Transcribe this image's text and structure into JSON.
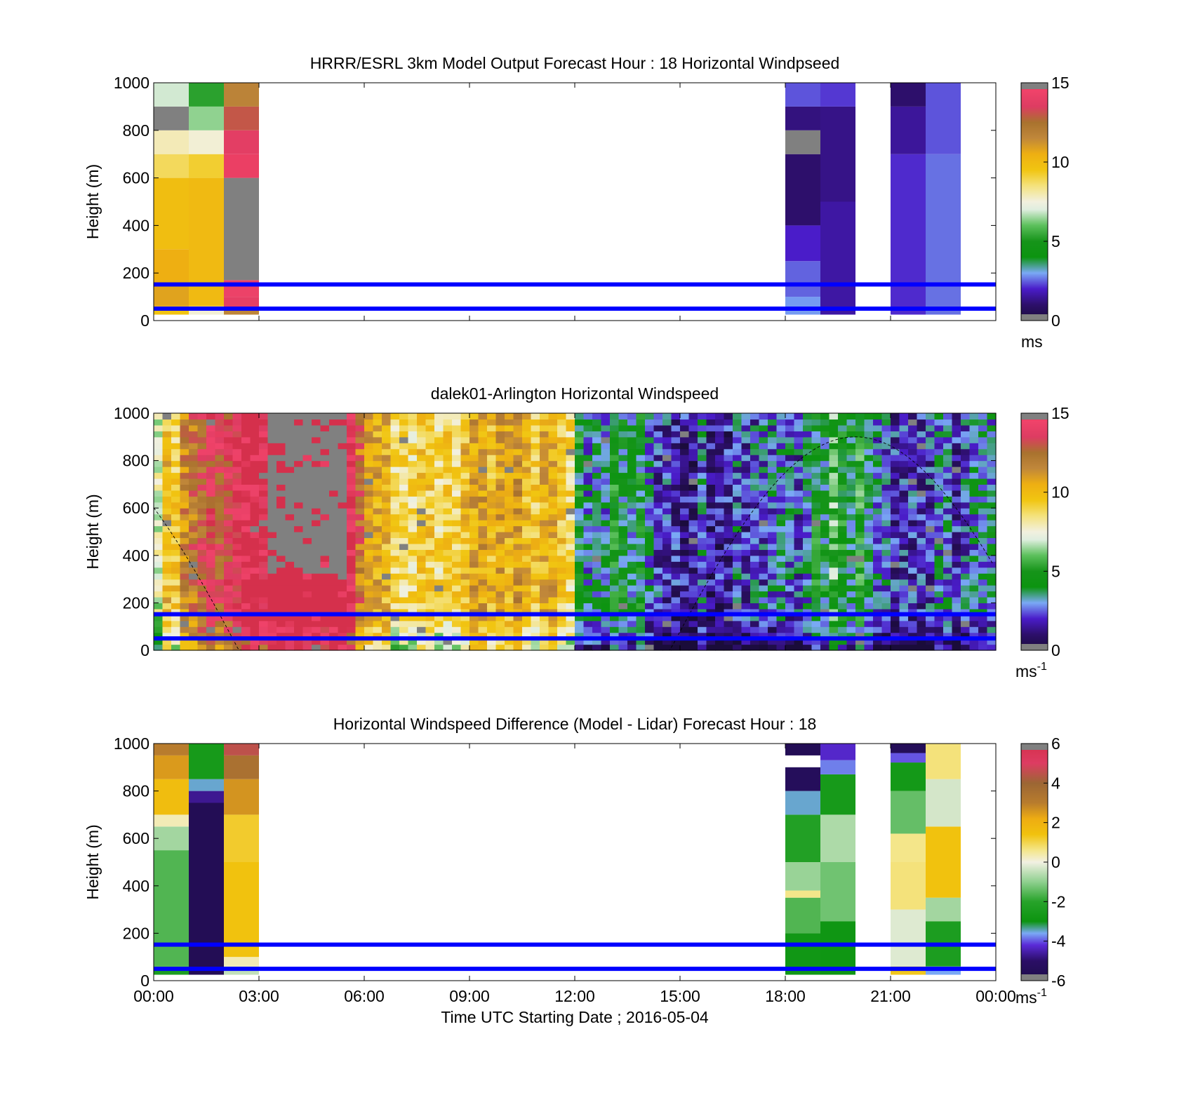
{
  "colors": {
    "frame": "#000000",
    "band_lines": "#0000ff",
    "missing_gray": "#808080"
  },
  "chart_data": [
    {
      "type": "heatmap",
      "title": "HRRR/ESRL 3km Model Output   Forecast Hour : 18 Horizontal Windpseed",
      "ylabel": "Height (m)",
      "xlim_hours": [
        0,
        24
      ],
      "ylim": [
        0,
        1000
      ],
      "yticks": [
        "0",
        "200",
        "400",
        "600",
        "800",
        "1000"
      ],
      "colorbar": {
        "min": 0,
        "max": 15,
        "ticks": [
          "0",
          "5",
          "10",
          "15"
        ],
        "unit": "ms",
        "unit_sup": "",
        "palette": "speed"
      },
      "band_lines_m": [
        50,
        152
      ],
      "columns": [
        {
          "t0": 0,
          "t1": 1,
          "cells": [
            {
              "z0": 25,
              "z1": 60,
              "v": 9.6
            },
            {
              "z0": 60,
              "z1": 150,
              "v": 10.8
            },
            {
              "z0": 150,
              "z1": 300,
              "v": 10.5
            },
            {
              "z0": 300,
              "z1": 600,
              "v": 9.8
            },
            {
              "z0": 600,
              "z1": 700,
              "v": 8.8
            },
            {
              "z0": 700,
              "z1": 800,
              "v": 7.9
            },
            {
              "z0": 800,
              "z1": 900,
              "v": null
            },
            {
              "z0": 900,
              "z1": 1000,
              "v": 6.9
            }
          ]
        },
        {
          "t0": 1,
          "t1": 2,
          "cells": [
            {
              "z0": 25,
              "z1": 60,
              "v": 7.6
            },
            {
              "z0": 60,
              "z1": 600,
              "v": 10.0
            },
            {
              "z0": 600,
              "z1": 700,
              "v": 9.2
            },
            {
              "z0": 700,
              "z1": 800,
              "v": 7.6
            },
            {
              "z0": 800,
              "z1": 900,
              "v": 6.4
            },
            {
              "z0": 900,
              "z1": 1000,
              "v": 5.3
            }
          ]
        },
        {
          "t0": 2,
          "t1": 3,
          "cells": [
            {
              "z0": 25,
              "z1": 45,
              "v": 11.6
            },
            {
              "z0": 45,
              "z1": 100,
              "v": 13.9
            },
            {
              "z0": 100,
              "z1": 170,
              "v": 14.3
            },
            {
              "z0": 170,
              "z1": 600,
              "v": null
            },
            {
              "z0": 600,
              "z1": 700,
              "v": 14.6
            },
            {
              "z0": 700,
              "z1": 800,
              "v": 13.8
            },
            {
              "z0": 800,
              "z1": 900,
              "v": 13.0
            },
            {
              "z0": 900,
              "z1": 1000,
              "v": 11.7
            }
          ]
        },
        {
          "t0": 18,
          "t1": 19,
          "cells": [
            {
              "z0": 25,
              "z1": 100,
              "v": 2.9
            },
            {
              "z0": 100,
              "z1": 250,
              "v": 2.5
            },
            {
              "z0": 250,
              "z1": 400,
              "v": 2.0
            },
            {
              "z0": 400,
              "z1": 700,
              "v": 1.0
            },
            {
              "z0": 700,
              "z1": 800,
              "v": null
            },
            {
              "z0": 800,
              "z1": 900,
              "v": 1.2
            },
            {
              "z0": 900,
              "z1": 1000,
              "v": 2.4
            }
          ]
        },
        {
          "t0": 19,
          "t1": 20,
          "cells": [
            {
              "z0": 25,
              "z1": 500,
              "v": 1.6
            },
            {
              "z0": 500,
              "z1": 900,
              "v": 1.3
            },
            {
              "z0": 900,
              "z1": 1000,
              "v": 2.2
            }
          ]
        },
        {
          "t0": 21,
          "t1": 22,
          "cells": [
            {
              "z0": 25,
              "z1": 700,
              "v": 2.1
            },
            {
              "z0": 700,
              "z1": 900,
              "v": 1.5
            },
            {
              "z0": 900,
              "z1": 1000,
              "v": 1.0
            }
          ]
        },
        {
          "t0": 22,
          "t1": 23,
          "cells": [
            {
              "z0": 25,
              "z1": 700,
              "v": 2.6
            },
            {
              "z0": 700,
              "z1": 1000,
              "v": 2.4
            }
          ]
        }
      ]
    },
    {
      "type": "heatmap",
      "title": "dalek01-Arlington  Horizontal Windspeed",
      "ylabel": "Height (m)",
      "xlim_hours": [
        0,
        24
      ],
      "ylim": [
        0,
        1000
      ],
      "yticks": [
        "0",
        "200",
        "400",
        "600",
        "800",
        "1000"
      ],
      "colorbar": {
        "min": 0,
        "max": 15,
        "ticks": [
          "0",
          "5",
          "10",
          "15"
        ],
        "unit": "ms",
        "unit_sup": "-1",
        "palette": "speed"
      },
      "band_lines_m": [
        50,
        152
      ],
      "time_step_hours": 0.25,
      "height_step_m": 25,
      "time_profile": [
        {
          "t": 0.0,
          "v": 7.5
        },
        {
          "t": 0.5,
          "v": 9.5
        },
        {
          "t": 1.0,
          "v": 12.0
        },
        {
          "t": 1.5,
          "v": 13.5
        },
        {
          "t": 2.5,
          "v": 14.5
        },
        {
          "t": 3.5,
          "v": 16.0
        },
        {
          "t": 5.5,
          "v": 16.0
        },
        {
          "t": 5.9,
          "v": 12.0
        },
        {
          "t": 6.5,
          "v": 10.5
        },
        {
          "t": 7.5,
          "v": 8.5
        },
        {
          "t": 8.5,
          "v": 9.5
        },
        {
          "t": 10.0,
          "v": 10.2
        },
        {
          "t": 11.8,
          "v": 9.8
        },
        {
          "t": 12.2,
          "v": 4.0
        },
        {
          "t": 13.5,
          "v": 4.0
        },
        {
          "t": 14.5,
          "v": 2.5
        },
        {
          "t": 15.5,
          "v": 2.0
        },
        {
          "t": 17.0,
          "v": 2.6
        },
        {
          "t": 18.5,
          "v": 3.5
        },
        {
          "t": 19.5,
          "v": 5.5
        },
        {
          "t": 20.5,
          "v": 4.0
        },
        {
          "t": 21.5,
          "v": 2.0
        },
        {
          "t": 23.0,
          "v": 2.4
        },
        {
          "t": 23.8,
          "v": 2.8
        }
      ],
      "dashed_curve": {
        "t_peak": 20.0,
        "z_peak": 900,
        "z_min": -120
      }
    },
    {
      "type": "heatmap",
      "title": "Horizontal Windspeed Difference (Model - Lidar) Forecast Hour : 18",
      "ylabel": "Height (m)",
      "xlabel": "Time UTC  Starting Date ; 2016-05-04",
      "xlim_hours": [
        0,
        24
      ],
      "xticks": [
        "00:00",
        "03:00",
        "06:00",
        "09:00",
        "12:00",
        "15:00",
        "18:00",
        "21:00",
        "00:00"
      ],
      "ylim": [
        0,
        1000
      ],
      "yticks": [
        "0",
        "200",
        "400",
        "600",
        "800",
        "1000"
      ],
      "colorbar": {
        "min": -6,
        "max": 6,
        "ticks": [
          "-6",
          "-4",
          "-2",
          "0",
          "2",
          "4",
          "6"
        ],
        "unit": "ms",
        "unit_sup": "-1",
        "palette": "diff"
      },
      "band_lines_m": [
        50,
        152
      ],
      "columns": [
        {
          "t0": 0,
          "t1": 1,
          "cells": [
            {
              "z0": 25,
              "z1": 60,
              "v": -2.4
            },
            {
              "z0": 60,
              "z1": 550,
              "v": -1.6
            },
            {
              "z0": 550,
              "z1": 650,
              "v": -0.8
            },
            {
              "z0": 650,
              "z1": 700,
              "v": 0.3
            },
            {
              "z0": 700,
              "z1": 850,
              "v": 1.6
            },
            {
              "z0": 850,
              "z1": 950,
              "v": 2.5
            },
            {
              "z0": 950,
              "z1": 1000,
              "v": 3.0
            }
          ]
        },
        {
          "t0": 1,
          "t1": 2,
          "cells": [
            {
              "z0": 25,
              "z1": 750,
              "v": -5.6
            },
            {
              "z0": 750,
              "z1": 800,
              "v": -4.7
            },
            {
              "z0": 800,
              "z1": 850,
              "v": -3.5
            },
            {
              "z0": 850,
              "z1": 1000,
              "v": -2.6
            }
          ]
        },
        {
          "t0": 2,
          "t1": 3,
          "cells": [
            {
              "z0": 25,
              "z1": 60,
              "v": -0.5
            },
            {
              "z0": 60,
              "z1": 100,
              "v": 0.3
            },
            {
              "z0": 100,
              "z1": 500,
              "v": 1.4
            },
            {
              "z0": 500,
              "z1": 700,
              "v": 1.2
            },
            {
              "z0": 700,
              "z1": 850,
              "v": 2.6
            },
            {
              "z0": 850,
              "z1": 950,
              "v": 3.5
            },
            {
              "z0": 950,
              "z1": 1000,
              "v": 4.5
            }
          ]
        },
        {
          "t0": 18,
          "t1": 19,
          "cells": [
            {
              "z0": 25,
              "z1": 200,
              "v": -2.8
            },
            {
              "z0": 200,
              "z1": 350,
              "v": -1.6
            },
            {
              "z0": 350,
              "z1": 380,
              "v": 0.6
            },
            {
              "z0": 380,
              "z1": 500,
              "v": -0.9
            },
            {
              "z0": 500,
              "z1": 700,
              "v": -2.2
            },
            {
              "z0": 700,
              "z1": 800,
              "v": -3.5
            },
            {
              "z0": 800,
              "z1": 900,
              "v": -5.4
            },
            {
              "z0": 950,
              "z1": 1000,
              "v": -5.6
            }
          ]
        },
        {
          "t0": 19,
          "t1": 20,
          "cells": [
            {
              "z0": 25,
              "z1": 250,
              "v": -2.9
            },
            {
              "z0": 250,
              "z1": 500,
              "v": -1.3
            },
            {
              "z0": 500,
              "z1": 700,
              "v": -0.7
            },
            {
              "z0": 700,
              "z1": 870,
              "v": -2.6
            },
            {
              "z0": 870,
              "z1": 930,
              "v": -3.8
            },
            {
              "z0": 930,
              "z1": 1000,
              "v": -4.3
            }
          ]
        },
        {
          "t0": 21,
          "t1": 22,
          "cells": [
            {
              "z0": 25,
              "z1": 60,
              "v": 1.3
            },
            {
              "z0": 60,
              "z1": 300,
              "v": -0.2
            },
            {
              "z0": 300,
              "z1": 500,
              "v": 0.7
            },
            {
              "z0": 500,
              "z1": 620,
              "v": 0.6
            },
            {
              "z0": 620,
              "z1": 800,
              "v": -1.4
            },
            {
              "z0": 800,
              "z1": 920,
              "v": -2.7
            },
            {
              "z0": 920,
              "z1": 960,
              "v": -4.0
            },
            {
              "z0": 960,
              "z1": 1000,
              "v": -5.5
            }
          ]
        },
        {
          "t0": 22,
          "t1": 23,
          "cells": [
            {
              "z0": 25,
              "z1": 60,
              "v": -3.6
            },
            {
              "z0": 60,
              "z1": 250,
              "v": -2.4
            },
            {
              "z0": 250,
              "z1": 350,
              "v": -0.8
            },
            {
              "z0": 350,
              "z1": 650,
              "v": 1.4
            },
            {
              "z0": 650,
              "z1": 850,
              "v": -0.3
            },
            {
              "z0": 850,
              "z1": 1000,
              "v": 0.7
            }
          ]
        }
      ]
    }
  ]
}
